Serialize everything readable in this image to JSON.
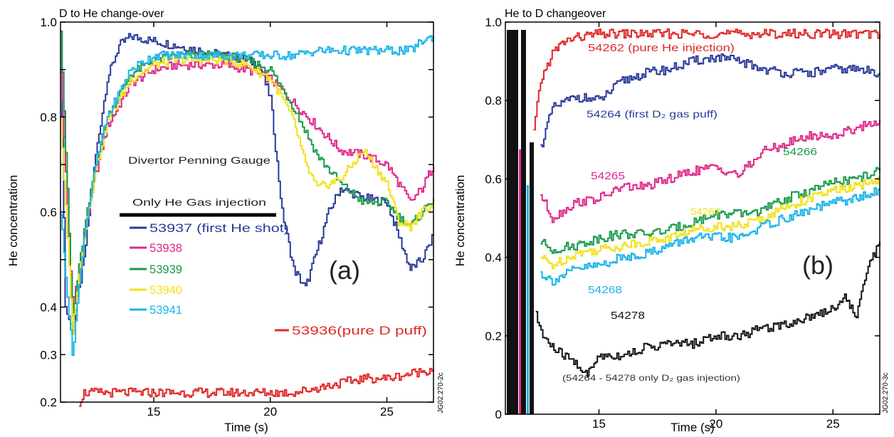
{
  "chart_data": [
    {
      "type": "line",
      "title": "D to He change-over",
      "xlabel": "Time (s)",
      "ylabel": "He concentration",
      "xlim": [
        11,
        27
      ],
      "ylim": [
        0.2,
        1.0
      ],
      "xticks": [
        15,
        20,
        25
      ],
      "yticks": [
        0.2,
        0.3,
        0.4,
        0.5,
        0.6,
        0.7,
        0.8,
        0.9,
        1.0
      ],
      "ytick_labels": [
        "0.2",
        "0.3",
        "0.4",
        "0.6",
        "0.8",
        "1.0"
      ],
      "panel_label": "(a)",
      "annotation": "Divertor Penning Gauge",
      "legend_title": "Only He Gas injection",
      "figure_id": "JG02.270-2c",
      "series": [
        {
          "name": "53937 (first He shot)",
          "color": "#2a3a9a",
          "x": [
            11.0,
            11.2,
            11.5,
            12.0,
            12.5,
            13.0,
            13.5,
            14.0,
            15.0,
            16.0,
            17.0,
            18.0,
            19.0,
            19.5,
            20.0,
            20.5,
            21.0,
            21.5,
            22.0,
            22.5,
            23.0,
            24.0,
            25.0,
            25.5,
            26.0,
            26.5,
            27.0
          ],
          "y": [
            0.99,
            0.4,
            0.35,
            0.5,
            0.72,
            0.88,
            0.95,
            0.97,
            0.96,
            0.95,
            0.94,
            0.93,
            0.92,
            0.91,
            0.84,
            0.6,
            0.48,
            0.44,
            0.52,
            0.6,
            0.65,
            0.63,
            0.62,
            0.55,
            0.48,
            0.5,
            0.55
          ]
        },
        {
          "name": "53938",
          "color": "#e0288a",
          "x": [
            11.0,
            11.5,
            12.0,
            12.5,
            13.0,
            14.0,
            15.0,
            16.0,
            17.0,
            18.0,
            19.0,
            20.0,
            21.0,
            22.0,
            23.0,
            24.0,
            25.0,
            26.0,
            26.5,
            27.0
          ],
          "y": [
            0.9,
            0.4,
            0.55,
            0.68,
            0.78,
            0.87,
            0.9,
            0.91,
            0.91,
            0.91,
            0.9,
            0.88,
            0.83,
            0.78,
            0.73,
            0.72,
            0.7,
            0.62,
            0.65,
            0.7
          ]
        },
        {
          "name": "53939",
          "color": "#1a9a4a",
          "x": [
            11.0,
            11.5,
            12.0,
            12.5,
            13.0,
            14.0,
            15.0,
            16.0,
            17.0,
            18.0,
            19.0,
            20.0,
            21.0,
            22.0,
            23.0,
            24.0,
            25.0,
            25.5,
            26.0,
            27.0
          ],
          "y": [
            0.99,
            0.38,
            0.56,
            0.7,
            0.8,
            0.89,
            0.92,
            0.93,
            0.93,
            0.93,
            0.92,
            0.9,
            0.82,
            0.72,
            0.66,
            0.62,
            0.62,
            0.59,
            0.57,
            0.63
          ]
        },
        {
          "name": "53940",
          "color": "#f2e21a",
          "x": [
            11.0,
            11.5,
            12.0,
            12.5,
            13.0,
            14.0,
            15.0,
            16.0,
            17.0,
            18.0,
            19.0,
            20.0,
            20.5,
            21.0,
            21.5,
            22.0,
            23.0,
            24.0,
            25.0,
            25.5,
            26.0,
            26.5,
            27.0
          ],
          "y": [
            0.8,
            0.35,
            0.55,
            0.69,
            0.79,
            0.88,
            0.91,
            0.92,
            0.92,
            0.92,
            0.91,
            0.88,
            0.84,
            0.79,
            0.7,
            0.65,
            0.67,
            0.73,
            0.66,
            0.58,
            0.57,
            0.6,
            0.62
          ]
        },
        {
          "name": "53941",
          "color": "#1ab4e8",
          "x": [
            11.0,
            11.5,
            12.0,
            12.5,
            13.0,
            14.0,
            15.0,
            16.0,
            17.0,
            18.0,
            19.0,
            20.0,
            21.0,
            22.0,
            23.0,
            24.0,
            25.0,
            26.0,
            26.5,
            27.0
          ],
          "y": [
            0.6,
            0.3,
            0.55,
            0.7,
            0.8,
            0.9,
            0.93,
            0.93,
            0.93,
            0.93,
            0.93,
            0.93,
            0.93,
            0.94,
            0.94,
            0.94,
            0.94,
            0.94,
            0.96,
            0.97
          ]
        },
        {
          "name": "53936(pure D puff)",
          "color": "#e02828",
          "x": [
            11.8,
            12.0,
            13.0,
            14.0,
            15.0,
            16.0,
            17.0,
            18.0,
            19.0,
            20.0,
            21.0,
            22.0,
            23.0,
            24.0,
            25.0,
            26.0,
            27.0
          ],
          "y": [
            0.2,
            0.22,
            0.22,
            0.22,
            0.22,
            0.22,
            0.22,
            0.22,
            0.22,
            0.22,
            0.22,
            0.23,
            0.24,
            0.25,
            0.25,
            0.26,
            0.27
          ]
        }
      ]
    },
    {
      "type": "line",
      "title": "He to D changeover",
      "xlabel": "Time (s)",
      "ylabel": "He concentration",
      "xlim": [
        11,
        27
      ],
      "ylim": [
        0,
        1.0
      ],
      "xticks": [
        15,
        20,
        25
      ],
      "yticks": [
        0,
        0.2,
        0.4,
        0.6,
        0.8,
        1.0
      ],
      "ytick_labels": [
        "0",
        "0.2",
        "0.4",
        "0.6",
        "0.8",
        "1.0"
      ],
      "panel_label": "(b)",
      "footnote": "(54264 - 54278 only D₂ gas injection)",
      "figure_id": "JG02.270-3c",
      "series": [
        {
          "name": "54262 (pure He injection)",
          "color": "#e02828",
          "x": [
            12.2,
            12.5,
            13.0,
            13.5,
            14.0,
            15.0,
            16.0,
            17.0,
            18.0,
            19.0,
            20.0,
            21.0,
            22.0,
            23.0,
            24.0,
            25.0,
            26.0,
            27.0
          ],
          "y": [
            0.72,
            0.85,
            0.92,
            0.95,
            0.96,
            0.97,
            0.97,
            0.97,
            0.97,
            0.97,
            0.97,
            0.97,
            0.97,
            0.97,
            0.97,
            0.97,
            0.97,
            0.97
          ]
        },
        {
          "name": "54264 (first D₂ gas puff)",
          "color": "#2a3a9a",
          "x": [
            12.5,
            13.0,
            14.0,
            15.0,
            16.0,
            17.0,
            18.0,
            19.0,
            20.0,
            21.0,
            22.0,
            23.0,
            24.0,
            25.0,
            26.0,
            27.0
          ],
          "y": [
            0.68,
            0.78,
            0.81,
            0.8,
            0.85,
            0.87,
            0.88,
            0.9,
            0.91,
            0.9,
            0.88,
            0.87,
            0.87,
            0.88,
            0.88,
            0.87
          ]
        },
        {
          "name": "54265",
          "color": "#e0288a",
          "x": [
            12.5,
            13.0,
            14.0,
            15.0,
            16.0,
            17.0,
            18.0,
            19.0,
            20.0,
            21.0,
            22.0,
            23.0,
            24.0,
            25.0,
            26.0,
            27.0
          ],
          "y": [
            0.56,
            0.5,
            0.54,
            0.55,
            0.58,
            0.58,
            0.6,
            0.62,
            0.63,
            0.61,
            0.67,
            0.69,
            0.71,
            0.71,
            0.73,
            0.75
          ]
        },
        {
          "name": "54266",
          "color": "#1a9a4a",
          "x": [
            12.5,
            13.0,
            14.0,
            15.0,
            16.0,
            17.0,
            18.0,
            19.0,
            20.0,
            21.0,
            22.0,
            23.0,
            24.0,
            25.0,
            26.0,
            27.0
          ],
          "y": [
            0.44,
            0.42,
            0.43,
            0.45,
            0.46,
            0.46,
            0.47,
            0.49,
            0.51,
            0.51,
            0.52,
            0.55,
            0.57,
            0.59,
            0.6,
            0.62
          ]
        },
        {
          "name": "54267",
          "color": "#f2e21a",
          "x": [
            12.5,
            13.0,
            14.0,
            15.0,
            16.0,
            17.0,
            18.0,
            19.0,
            20.0,
            21.0,
            22.0,
            23.0,
            24.0,
            25.0,
            26.0,
            27.0
          ],
          "y": [
            0.4,
            0.38,
            0.41,
            0.42,
            0.43,
            0.44,
            0.45,
            0.47,
            0.48,
            0.48,
            0.5,
            0.53,
            0.55,
            0.57,
            0.58,
            0.6
          ]
        },
        {
          "name": "54268",
          "color": "#1ab4e8",
          "x": [
            12.5,
            13.0,
            14.0,
            15.0,
            16.0,
            17.0,
            18.0,
            19.0,
            20.0,
            21.0,
            22.0,
            23.0,
            24.0,
            25.0,
            26.0,
            27.0
          ],
          "y": [
            0.36,
            0.34,
            0.37,
            0.38,
            0.4,
            0.41,
            0.43,
            0.45,
            0.45,
            0.45,
            0.48,
            0.5,
            0.52,
            0.54,
            0.55,
            0.57
          ]
        },
        {
          "name": "54278",
          "color": "#151515",
          "x": [
            12.3,
            12.6,
            13.0,
            13.5,
            14.0,
            14.5,
            15.0,
            16.0,
            17.0,
            18.0,
            19.0,
            20.0,
            21.0,
            22.0,
            23.0,
            24.0,
            25.0,
            25.5,
            26.0,
            26.5,
            27.0
          ],
          "y": [
            0.25,
            0.2,
            0.17,
            0.15,
            0.13,
            0.1,
            0.15,
            0.15,
            0.17,
            0.18,
            0.18,
            0.2,
            0.2,
            0.22,
            0.23,
            0.25,
            0.27,
            0.3,
            0.25,
            0.38,
            0.44
          ]
        }
      ]
    }
  ]
}
